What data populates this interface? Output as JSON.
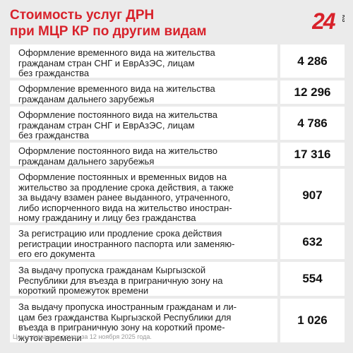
{
  "header": {
    "title_line1": "Стоимость услуг ДРН",
    "title_line2": "при МЦР КР по другим видам",
    "logo_text": "24",
    "logo_suffix": "KG"
  },
  "colors": {
    "accent": "#d8222b",
    "background": "#ebebeb",
    "card": "#ffffff"
  },
  "rows": [
    {
      "lines": [
        "Оформление временного вида на жительства",
        "гражданам стран СНГ и ЕврАзЭС, лицам",
        "без гражданства"
      ],
      "price": "4 286"
    },
    {
      "lines": [
        "Оформление временного вида на жительства",
        "гражданам дальнего зарубежья"
      ],
      "price": "12 296"
    },
    {
      "lines": [
        "Оформление постоянного вида на жительства",
        "гражданам стран СНГ и ЕврАзЭС, лицам",
        "без гражданства"
      ],
      "price": "4 786"
    },
    {
      "lines": [
        "Оформление постоянного вида на жительство",
        "гражданам дальнего зарубежья"
      ],
      "price": "17 316"
    },
    {
      "lines": [
        "Оформление постоянных и временных видов на",
        "жительство за продление срока действия, а также",
        "за выдачу взамен ранее выданного, утраченного,",
        "либо испорченного вида на жительство иностран-",
        "ному гражданину и лицу без гражданства"
      ],
      "price": "907"
    },
    {
      "lines": [
        "За регистрацию или продление срока действия",
        "регистрации иностранного паспорта или заменяю-",
        "его его документа"
      ],
      "price": "632"
    },
    {
      "lines": [
        "За выдачу пропуска гражданам Кыргызской",
        "Республики для въезда в приграничную зону на",
        "короткий промежуток времени"
      ],
      "price": "554"
    },
    {
      "lines": [
        "За выдачу пропуска иностранным гражданам и ли-",
        "цам без гражданства Кыргызской Республики для",
        "въезда в приграничную зону на короткий проме-",
        "жуток времени"
      ],
      "price": "1 026"
    }
  ],
  "footnote": "Цены указаны в сомах за 12 ноября 2025 года."
}
